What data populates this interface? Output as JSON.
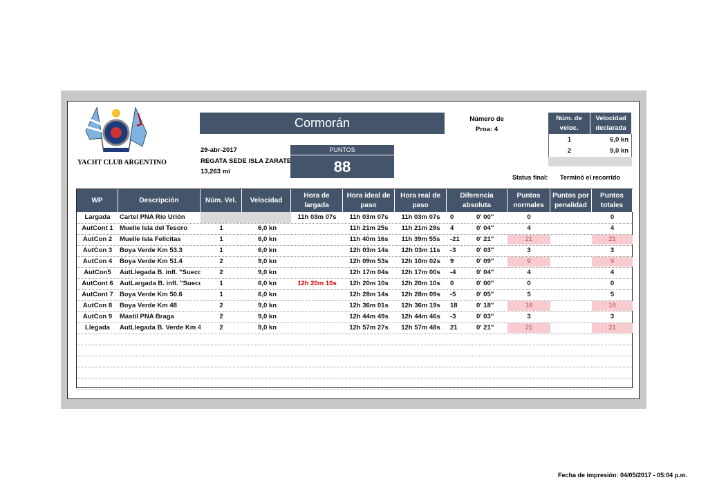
{
  "club": "YACHT CLUB ARGENTINO",
  "boat": "Cormorán",
  "date": "29-abr-2017",
  "regatta": "REGATA SEDE ISLA ZARATE",
  "distance": "13,263 mi",
  "points_label": "PUNTOS",
  "points": 88,
  "bow_number": "Número de Proa: 4",
  "speed_table": {
    "header": [
      "Núm. de veloc.",
      "Velocidad declarada"
    ],
    "rows": [
      [
        1,
        "6,0 kn"
      ],
      [
        2,
        "9,0 kn"
      ]
    ]
  },
  "status_label": "Status final:",
  "status": "Terminó el recorrido",
  "table": {
    "header": [
      "WP",
      "Descripción",
      "Núm. Vel.",
      "Velocidad",
      "Hora de largada",
      "Hora ideal de paso",
      "Hora real de paso",
      "Diferencia absoluta",
      "Puntos normales",
      "Puntos por penalidad",
      "Puntos totales"
    ],
    "rows": [
      {
        "wp": "Largada",
        "desc": "Cartel PNA Río Urión",
        "largada": "11h 03m 07s",
        "ideal": "11h 03m 07s",
        "real": "11h 03m 07s",
        "dif": 0,
        "dif_time": "0' 00''",
        "pts_norm": 0,
        "pts_tot": 0,
        "blank_speed": true
      },
      {
        "wp": "AutCont 1",
        "desc": "Muelle Isla del Tesoro",
        "num_vel": 1,
        "vel": "6,0 kn",
        "ideal": "11h 21m 25s",
        "real": "11h 21m 29s",
        "dif": 4,
        "dif_time": "0' 04''",
        "pts_norm": 4,
        "pts_tot": 4
      },
      {
        "wp": "AutCon 2",
        "desc": "Muelle Isla Felicitas",
        "num_vel": 1,
        "vel": "6,0 kn",
        "ideal": "11h 40m 16s",
        "real": "11h 39m 55s",
        "dif": -21,
        "dif_time": "0' 21''",
        "pts_norm": 21,
        "pts_tot": 21,
        "highlight": true
      },
      {
        "wp": "AutCon 3",
        "desc": "Boya Verde Km 53.3",
        "num_vel": 1,
        "vel": "6,0 kn",
        "ideal": "12h 03m 14s",
        "real": "12h 03m 11s",
        "dif": -3,
        "dif_time": "0' 03''",
        "pts_norm": 3,
        "pts_tot": 3
      },
      {
        "wp": "AutCon 4",
        "desc": "Boya Verde Km 51.4",
        "num_vel": 2,
        "vel": "9,0 kn",
        "ideal": "12h 09m 53s",
        "real": "12h 10m 02s",
        "dif": 9,
        "dif_time": "0' 09''",
        "pts_norm": 9,
        "pts_tot": 9,
        "highlight": true
      },
      {
        "wp": "AutCon5",
        "desc": "AutLlegada B. infl. \"Sueco",
        "num_vel": 2,
        "vel": "9,0 kn",
        "ideal": "12h 17m 04s",
        "real": "12h 17m 00s",
        "dif": -4,
        "dif_time": "0' 04''",
        "pts_norm": 4,
        "pts_tot": 4
      },
      {
        "wp": "AutCont 6",
        "desc": "AutLargada B. infl. \"Sueco",
        "num_vel": 1,
        "vel": "6,0 kn",
        "largada": "12h 20m 10s",
        "largada_alert": true,
        "ideal": "12h 20m 10s",
        "real": "12h 20m 10s",
        "dif": 0,
        "dif_time": "0' 00''",
        "pts_norm": 0,
        "pts_tot": 0
      },
      {
        "wp": "AutCont 7",
        "desc": "Boya Verde Km 50.6",
        "num_vel": 1,
        "vel": "6,0 kn",
        "ideal": "12h 28m 14s",
        "real": "12h 28m 09s",
        "dif": -5,
        "dif_time": "0' 05''",
        "pts_norm": 5,
        "pts_tot": 5
      },
      {
        "wp": "AutCon 8",
        "desc": "Boya Verde Km 48",
        "num_vel": 2,
        "vel": "9,0 kn",
        "ideal": "12h 36m 01s",
        "real": "12h 36m 19s",
        "dif": 18,
        "dif_time": "0' 18''",
        "pts_norm": 18,
        "pts_tot": 18,
        "highlight": true
      },
      {
        "wp": "AutCon 9",
        "desc": "Mástil PNA Braga",
        "num_vel": 2,
        "vel": "9,0 kn",
        "ideal": "12h 44m 49s",
        "real": "12h 44m 46s",
        "dif": -3,
        "dif_time": "0' 03''",
        "pts_norm": 3,
        "pts_tot": 3
      },
      {
        "wp": "Llegada",
        "desc": "AutLlegada B. Verde Km 4",
        "num_vel": 2,
        "vel": "9,0 kn",
        "ideal": "12h 57m 27s",
        "real": "12h 57m 48s",
        "dif": 21,
        "dif_time": "0' 21''",
        "pts_norm": 21,
        "pts_tot": 21,
        "highlight": true
      }
    ]
  },
  "footer": "Fecha de impresión: 04/05/2017 - 05:04 p.m."
}
